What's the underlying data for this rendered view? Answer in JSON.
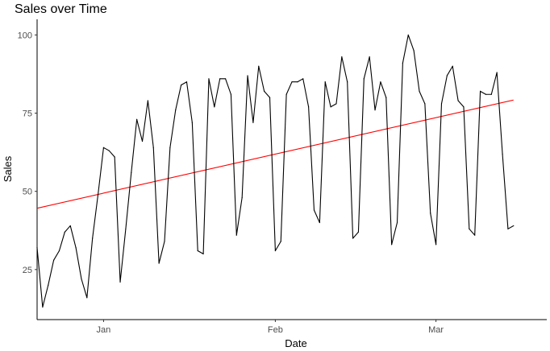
{
  "chart_data": {
    "type": "line",
    "title": "Sales over Time",
    "xlabel": "Date",
    "ylabel": "Sales",
    "x_axis_type": "date",
    "x_range": [
      "2023-12-20",
      "2024-03-21"
    ],
    "ylim": [
      9,
      105
    ],
    "y_ticks": [
      25,
      50,
      75,
      100
    ],
    "x_ticks": [
      {
        "date": "2024-01-01",
        "label": "Jan"
      },
      {
        "date": "2024-02-01",
        "label": "Feb"
      },
      {
        "date": "2024-03-01",
        "label": "Mar"
      }
    ],
    "grid": false,
    "legend": "none",
    "series": [
      {
        "color": "#000000",
        "x_start": "2023-12-20",
        "x_step_days": 1,
        "values": [
          32,
          13,
          20,
          28,
          31,
          37,
          39,
          32,
          22,
          16,
          35,
          49,
          64,
          63,
          61,
          21,
          38,
          56,
          73,
          66,
          79,
          64,
          27,
          34,
          64,
          76,
          84,
          85,
          72,
          31,
          30,
          86,
          77,
          86,
          86,
          81,
          36,
          48,
          87,
          72,
          90,
          82,
          80,
          31,
          34,
          81,
          85,
          85,
          86,
          77,
          44,
          40,
          85,
          77,
          78,
          93,
          85,
          35,
          37,
          86,
          93,
          76,
          85,
          80,
          33,
          40,
          91,
          100,
          95,
          82,
          78,
          43,
          33,
          78,
          87,
          90,
          79,
          77,
          38,
          36,
          82,
          81,
          81,
          88,
          62,
          38,
          39
        ]
      }
    ],
    "trend": {
      "color": "#ff0000",
      "start": {
        "date": "2023-12-20",
        "value": 44.6
      },
      "end": {
        "date": "2024-03-15",
        "value": 79.2
      }
    }
  }
}
